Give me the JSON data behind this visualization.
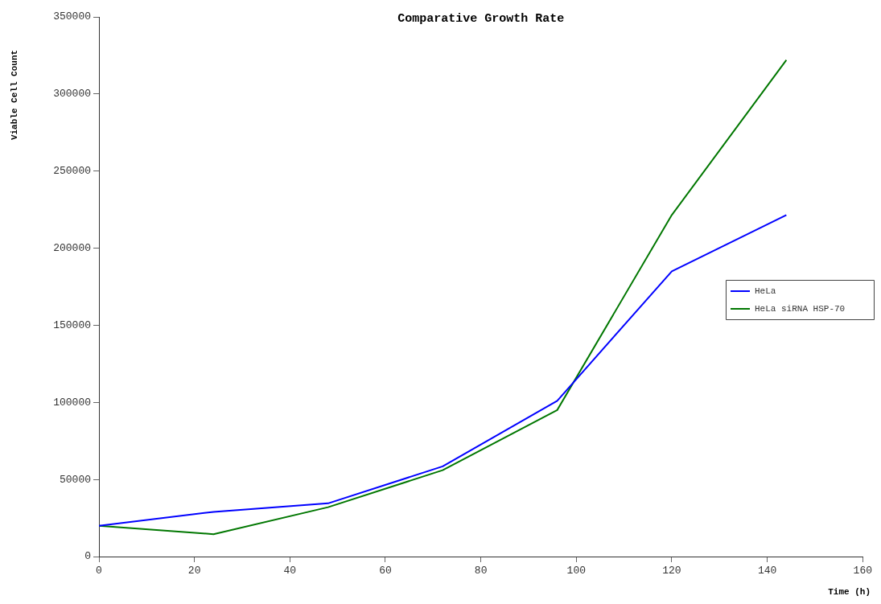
{
  "chart_data": {
    "type": "line",
    "title": "Comparative Growth Rate",
    "xlabel": "Time (h)",
    "ylabel": "Viable Cell Count",
    "x": [
      0,
      24,
      48,
      72,
      96,
      120,
      144
    ],
    "series": [
      {
        "name": "HeLa",
        "color": "#0000ff",
        "values": [
          20000,
          29000,
          34500,
          58500,
          101000,
          185000,
          221500
        ]
      },
      {
        "name": "HeLa siRNA HSP-70",
        "color": "#007700",
        "values": [
          20000,
          14500,
          32000,
          56000,
          95000,
          221500,
          322000
        ]
      }
    ],
    "xlim": [
      0,
      160
    ],
    "xticks": [
      0,
      20,
      40,
      60,
      80,
      100,
      120,
      140,
      160
    ],
    "ylim": [
      0,
      350000
    ],
    "yticks": [
      0,
      50000,
      100000,
      150000,
      200000,
      250000,
      300000,
      350000
    ],
    "grid": false,
    "legend": "right",
    "marker": "none",
    "line_style": "solid"
  }
}
